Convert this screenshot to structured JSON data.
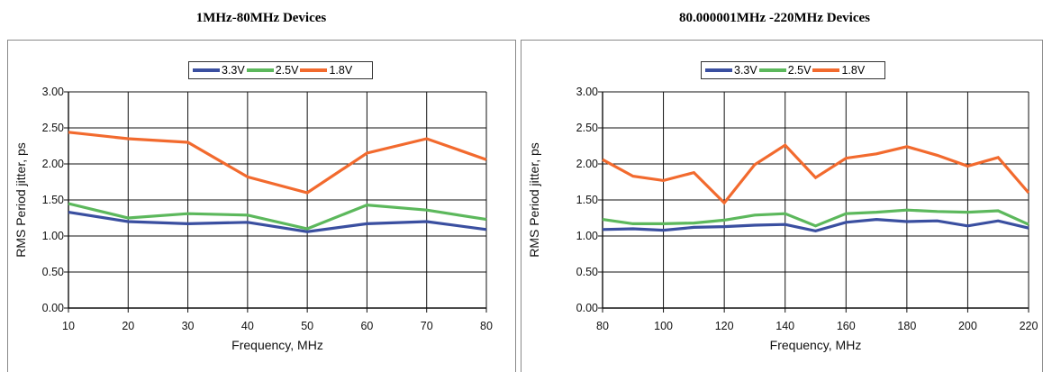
{
  "chart_data": [
    {
      "type": "line",
      "title": "1MHz-80MHz Devices",
      "xlabel": "Frequency, MHz",
      "ylabel": "RMS Period jitter, ps",
      "xlim": [
        10,
        80
      ],
      "ylim": [
        0,
        3
      ],
      "x_ticks": [
        "10",
        "20",
        "30",
        "40",
        "50",
        "60",
        "70",
        "80"
      ],
      "y_ticks": [
        "0.00",
        "0.50",
        "1.00",
        "1.50",
        "2.00",
        "2.50",
        "3.00"
      ],
      "grid": true,
      "legend_position": "top-center",
      "x": [
        10,
        20,
        30,
        40,
        50,
        60,
        70,
        80
      ],
      "series": [
        {
          "name": "3.3V",
          "color": "#3a4fa0",
          "values": [
            1.33,
            1.2,
            1.17,
            1.19,
            1.06,
            1.17,
            1.2,
            1.09
          ]
        },
        {
          "name": "2.5V",
          "color": "#5cb85c",
          "values": [
            1.45,
            1.25,
            1.31,
            1.29,
            1.1,
            1.43,
            1.36,
            1.23
          ]
        },
        {
          "name": "1.8V",
          "color": "#f26a2e",
          "values": [
            2.44,
            2.35,
            2.3,
            1.82,
            1.6,
            2.15,
            2.35,
            2.06
          ]
        }
      ]
    },
    {
      "type": "line",
      "title": "80.000001MHz -220MHz Devices",
      "xlabel": "Frequency, MHz",
      "ylabel": "RMS Period jitter, ps",
      "xlim": [
        80,
        220
      ],
      "ylim": [
        0,
        3
      ],
      "x_ticks": [
        "80",
        "100",
        "120",
        "140",
        "160",
        "180",
        "200",
        "220"
      ],
      "y_ticks": [
        "0.00",
        "0.50",
        "1.00",
        "1.50",
        "2.00",
        "2.50",
        "3.00"
      ],
      "grid": true,
      "legend_position": "top-center",
      "x": [
        80,
        90,
        100,
        110,
        120,
        130,
        140,
        150,
        160,
        170,
        180,
        190,
        200,
        210,
        220
      ],
      "series": [
        {
          "name": "3.3V",
          "color": "#3a4fa0",
          "values": [
            1.09,
            1.1,
            1.08,
            1.12,
            1.13,
            1.15,
            1.16,
            1.07,
            1.19,
            1.23,
            1.2,
            1.21,
            1.14,
            1.21,
            1.11
          ]
        },
        {
          "name": "2.5V",
          "color": "#5cb85c",
          "values": [
            1.23,
            1.17,
            1.17,
            1.18,
            1.22,
            1.29,
            1.31,
            1.14,
            1.31,
            1.33,
            1.36,
            1.34,
            1.33,
            1.35,
            1.16
          ]
        },
        {
          "name": "1.8V",
          "color": "#f26a2e",
          "values": [
            2.06,
            1.83,
            1.77,
            1.88,
            1.46,
            1.99,
            2.26,
            1.81,
            2.08,
            2.14,
            2.24,
            2.12,
            1.97,
            2.09,
            1.6
          ]
        }
      ]
    }
  ]
}
